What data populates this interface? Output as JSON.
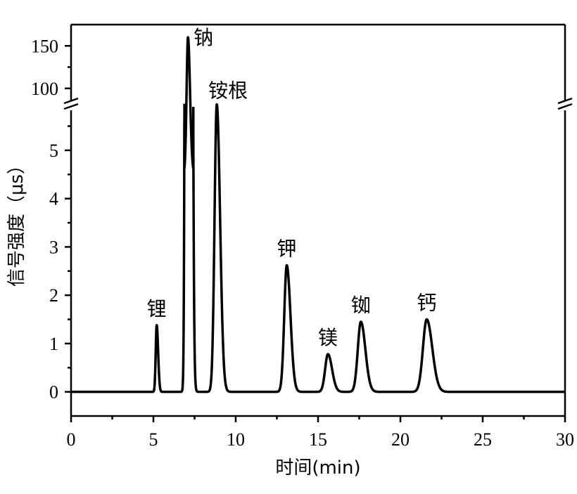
{
  "chart_data": {
    "type": "line",
    "title": "",
    "xlabel": "时间(min)",
    "ylabel": "信号强度（μs）",
    "xlim": [
      0,
      30
    ],
    "ylim_lower": [
      -0.5,
      5.9
    ],
    "ylim_upper": [
      80,
      175
    ],
    "axis_break": true,
    "grid": false,
    "x_ticks": [
      0,
      5,
      10,
      15,
      20,
      25,
      30
    ],
    "y_ticks_lower": [
      0,
      1,
      2,
      3,
      4,
      5
    ],
    "y_ticks_upper": [
      100,
      150
    ],
    "baseline": 0,
    "series": [
      {
        "peaks": [
          {
            "label": "锂",
            "x": 5.2,
            "y": 1.38,
            "width": 0.07
          },
          {
            "label": "钠",
            "x": 7.1,
            "y": 160,
            "width": 0.1
          },
          {
            "label": "铵根",
            "x": 8.85,
            "y": 5.95,
            "width": 0.16
          },
          {
            "label": "钾",
            "x": 13.1,
            "y": 2.62,
            "width": 0.18
          },
          {
            "label": "镁",
            "x": 15.6,
            "y": 0.78,
            "width": 0.2
          },
          {
            "label": "铷",
            "x": 17.6,
            "y": 1.45,
            "width": 0.22
          },
          {
            "label": "钙",
            "x": 21.6,
            "y": 1.5,
            "width": 0.27
          }
        ]
      }
    ]
  }
}
